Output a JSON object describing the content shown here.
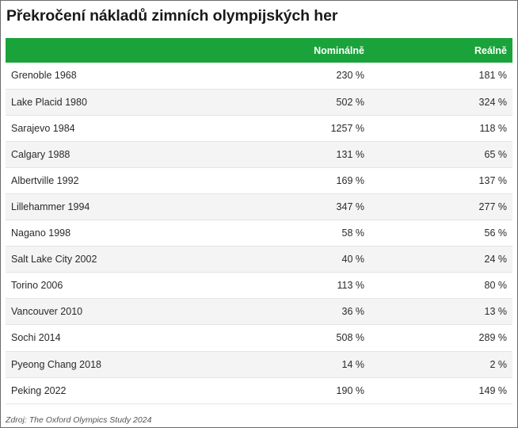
{
  "title": "Překročení nákladů zimních olympijských her",
  "source": "Zdroj: The Oxford Olympics Study 2024",
  "colors": {
    "header_bg": "#1aa33a",
    "header_text": "#ffffff",
    "row_alt": "#f4f4f4"
  },
  "chart_data": {
    "type": "table",
    "title": "Překročení nákladů zimních olympijských her",
    "columns": [
      "",
      "Nominálně",
      "Reálně"
    ],
    "rows": [
      [
        "Grenoble 1968",
        "230 %",
        "181 %"
      ],
      [
        "Lake Placid 1980",
        "502 %",
        "324 %"
      ],
      [
        "Sarajevo 1984",
        "1257 %",
        "118 %"
      ],
      [
        "Calgary 1988",
        "131 %",
        "65 %"
      ],
      [
        "Albertville 1992",
        "169 %",
        "137 %"
      ],
      [
        "Lillehammer 1994",
        "347 %",
        "277 %"
      ],
      [
        "Nagano 1998",
        "58 %",
        "56 %"
      ],
      [
        "Salt Lake City 2002",
        "40 %",
        "24 %"
      ],
      [
        "Torino 2006",
        "113 %",
        "80 %"
      ],
      [
        "Vancouver 2010",
        "36 %",
        "13 %"
      ],
      [
        "Sochi 2014",
        "508 %",
        "289 %"
      ],
      [
        "Pyeong Chang 2018",
        "14 %",
        "2 %"
      ],
      [
        "Peking 2022",
        "190 %",
        "149 %"
      ]
    ]
  }
}
